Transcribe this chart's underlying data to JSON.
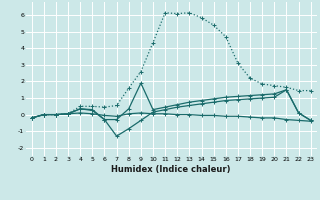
{
  "xlabel": "Humidex (Indice chaleur)",
  "xlim": [
    -0.5,
    23.5
  ],
  "ylim": [
    -2.5,
    6.8
  ],
  "yticks": [
    -2,
    -1,
    0,
    1,
    2,
    3,
    4,
    5,
    6
  ],
  "xticks": [
    0,
    1,
    2,
    3,
    4,
    5,
    6,
    7,
    8,
    9,
    10,
    11,
    12,
    13,
    14,
    15,
    16,
    17,
    18,
    19,
    20,
    21,
    22,
    23
  ],
  "bg_color": "#cce8e8",
  "grid_color": "#ffffff",
  "line_color": "#1a6b6b",
  "curve1_x": [
    0,
    1,
    2,
    3,
    4,
    5,
    6,
    7,
    8,
    9,
    10,
    11,
    12,
    13,
    14,
    15,
    16,
    17,
    18,
    19,
    20,
    21,
    22,
    23
  ],
  "curve1_y": [
    -0.2,
    0.0,
    0.0,
    0.05,
    0.5,
    0.5,
    0.45,
    0.55,
    1.6,
    2.6,
    4.35,
    6.15,
    6.1,
    6.15,
    5.85,
    5.4,
    4.7,
    3.1,
    2.2,
    1.85,
    1.75,
    1.65,
    1.45,
    1.45
  ],
  "curve2_x": [
    0,
    1,
    2,
    3,
    4,
    5,
    6,
    7,
    8,
    9,
    10,
    11,
    12,
    13,
    14,
    15,
    16,
    17,
    18,
    19,
    20,
    21,
    22,
    23
  ],
  "curve2_y": [
    -0.2,
    0.0,
    0.0,
    0.05,
    0.35,
    0.3,
    -0.3,
    -0.3,
    0.35,
    1.9,
    0.3,
    0.45,
    0.6,
    0.75,
    0.85,
    0.95,
    1.05,
    1.1,
    1.15,
    1.2,
    1.25,
    1.5,
    0.1,
    -0.35
  ],
  "curve3_x": [
    0,
    1,
    2,
    3,
    4,
    5,
    6,
    7,
    8,
    9,
    10,
    11,
    12,
    13,
    14,
    15,
    16,
    17,
    18,
    19,
    20,
    21,
    22,
    23
  ],
  "curve3_y": [
    -0.2,
    0.0,
    0.0,
    0.05,
    0.35,
    0.25,
    -0.3,
    -1.3,
    -0.85,
    -0.35,
    0.15,
    0.3,
    0.45,
    0.55,
    0.65,
    0.75,
    0.85,
    0.9,
    0.95,
    1.0,
    1.05,
    1.5,
    0.1,
    -0.35
  ],
  "curve4_x": [
    0,
    1,
    2,
    3,
    4,
    5,
    6,
    7,
    8,
    9,
    10,
    11,
    12,
    13,
    14,
    15,
    16,
    17,
    18,
    19,
    20,
    21,
    22,
    23
  ],
  "curve4_y": [
    -0.2,
    0.0,
    0.0,
    0.05,
    0.1,
    0.05,
    -0.05,
    -0.1,
    0.05,
    0.1,
    0.05,
    0.05,
    0.0,
    0.0,
    -0.05,
    -0.05,
    -0.1,
    -0.1,
    -0.15,
    -0.2,
    -0.2,
    -0.3,
    -0.35,
    -0.4
  ]
}
